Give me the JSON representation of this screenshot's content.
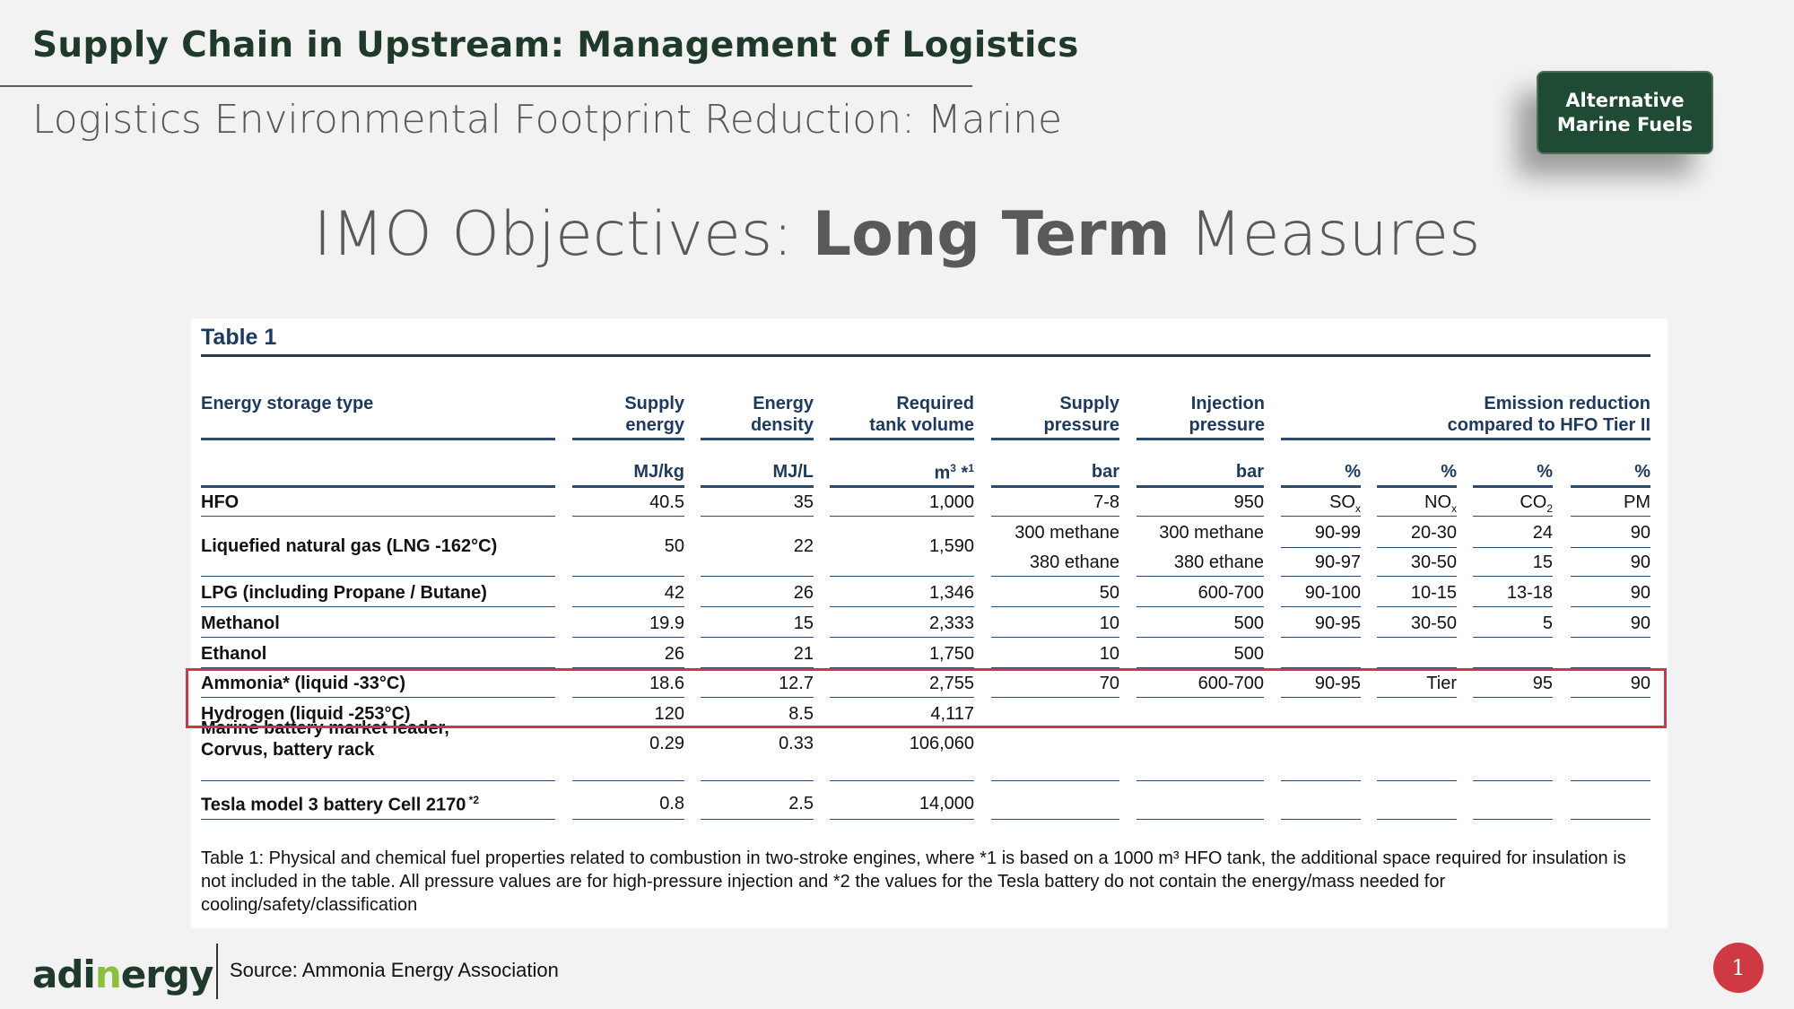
{
  "header": {
    "title": "Supply Chain in Upstream: Management of Logistics",
    "subtitle": "Logistics Environmental Footprint Reduction: Marine",
    "button_label_1": "Alternative",
    "button_label_2": "Marine Fuels"
  },
  "slide": {
    "title_pre": "IMO Objectives: ",
    "title_bold": "Long Term",
    "title_post": " Measures"
  },
  "table": {
    "label": "Table 1",
    "col_headers": {
      "type": "Energy storage type",
      "supply_energy": [
        "Supply",
        "energy"
      ],
      "energy_density": [
        "Energy",
        "density"
      ],
      "tank_volume": [
        "Required",
        "tank volume"
      ],
      "supply_pressure": [
        "Supply",
        "pressure"
      ],
      "injection_pressure": [
        "Injection",
        "pressure"
      ],
      "emission": [
        "Emission reduction",
        "compared to HFO Tier II"
      ]
    },
    "units": [
      "MJ/kg",
      "MJ/L",
      "m³ *¹",
      "bar",
      "bar",
      "%",
      "%",
      "%",
      "%"
    ],
    "rows": [
      {
        "name": "HFO",
        "c": [
          "40.5",
          "35",
          "1,000",
          "7-8",
          "950",
          "SOx",
          "NOx",
          "CO2",
          "PM"
        ]
      },
      {
        "name": "Liquefied natural gas (LNG -162°C)",
        "c": [
          "50",
          "22",
          "1,590"
        ],
        "sp": [
          "300 methane",
          "380 ethane"
        ],
        "ip": [
          "300 methane",
          "380 ethane"
        ],
        "e1": [
          "90-99",
          "20-30",
          "24",
          "90"
        ],
        "e2": [
          "90-97",
          "30-50",
          "15",
          "90"
        ]
      },
      {
        "name": "LPG (including Propane / Butane)",
        "c": [
          "42",
          "26",
          "1,346",
          "50",
          "600-700",
          "90-100",
          "10-15",
          "13-18",
          "90"
        ]
      },
      {
        "name": "Methanol",
        "c": [
          "19.9",
          "15",
          "2,333",
          "10",
          "500",
          "90-95",
          "30-50",
          "5",
          "90"
        ]
      },
      {
        "name": "Ethanol",
        "c": [
          "26",
          "21",
          "1,750",
          "10",
          "500",
          "",
          "",
          "",
          ""
        ]
      },
      {
        "name": "Ammonia* (liquid -33°C)",
        "c": [
          "18.6",
          "12.7",
          "2,755",
          "70",
          "600-700",
          "90-95",
          "Tier",
          "95",
          "90"
        ]
      },
      {
        "name": "Hydrogen (liquid -253°C)",
        "c": [
          "120",
          "8.5",
          "4,117",
          "",
          "",
          "",
          "",
          "",
          ""
        ]
      },
      {
        "name": "Marine battery market leader,",
        "name2": "Corvus, battery rack",
        "c": [
          "0.29",
          "0.33",
          "106,060",
          "",
          "",
          "",
          "",
          "",
          ""
        ]
      },
      {
        "name": "Tesla model 3 battery Cell 2170",
        "sup": "*2",
        "c": [
          "0.8",
          "2.5",
          "14,000",
          "",
          "",
          "",
          "",
          "",
          ""
        ]
      }
    ],
    "caption": "Table 1: Physical and chemical fuel properties related to combustion in two-stroke engines, where *1 is based on a 1000 m³ HFO tank, the additional space required for insulation is not included in the table. All pressure values are for high-pressure injection and *2 the values for the Tesla battery do not contain the energy/mass needed for cooling/safety/classification"
  },
  "footer": {
    "logo_a": "adi",
    "logo_b": "n",
    "logo_c": "ergy",
    "source": "Source: Ammonia Energy Association",
    "page": "1"
  }
}
